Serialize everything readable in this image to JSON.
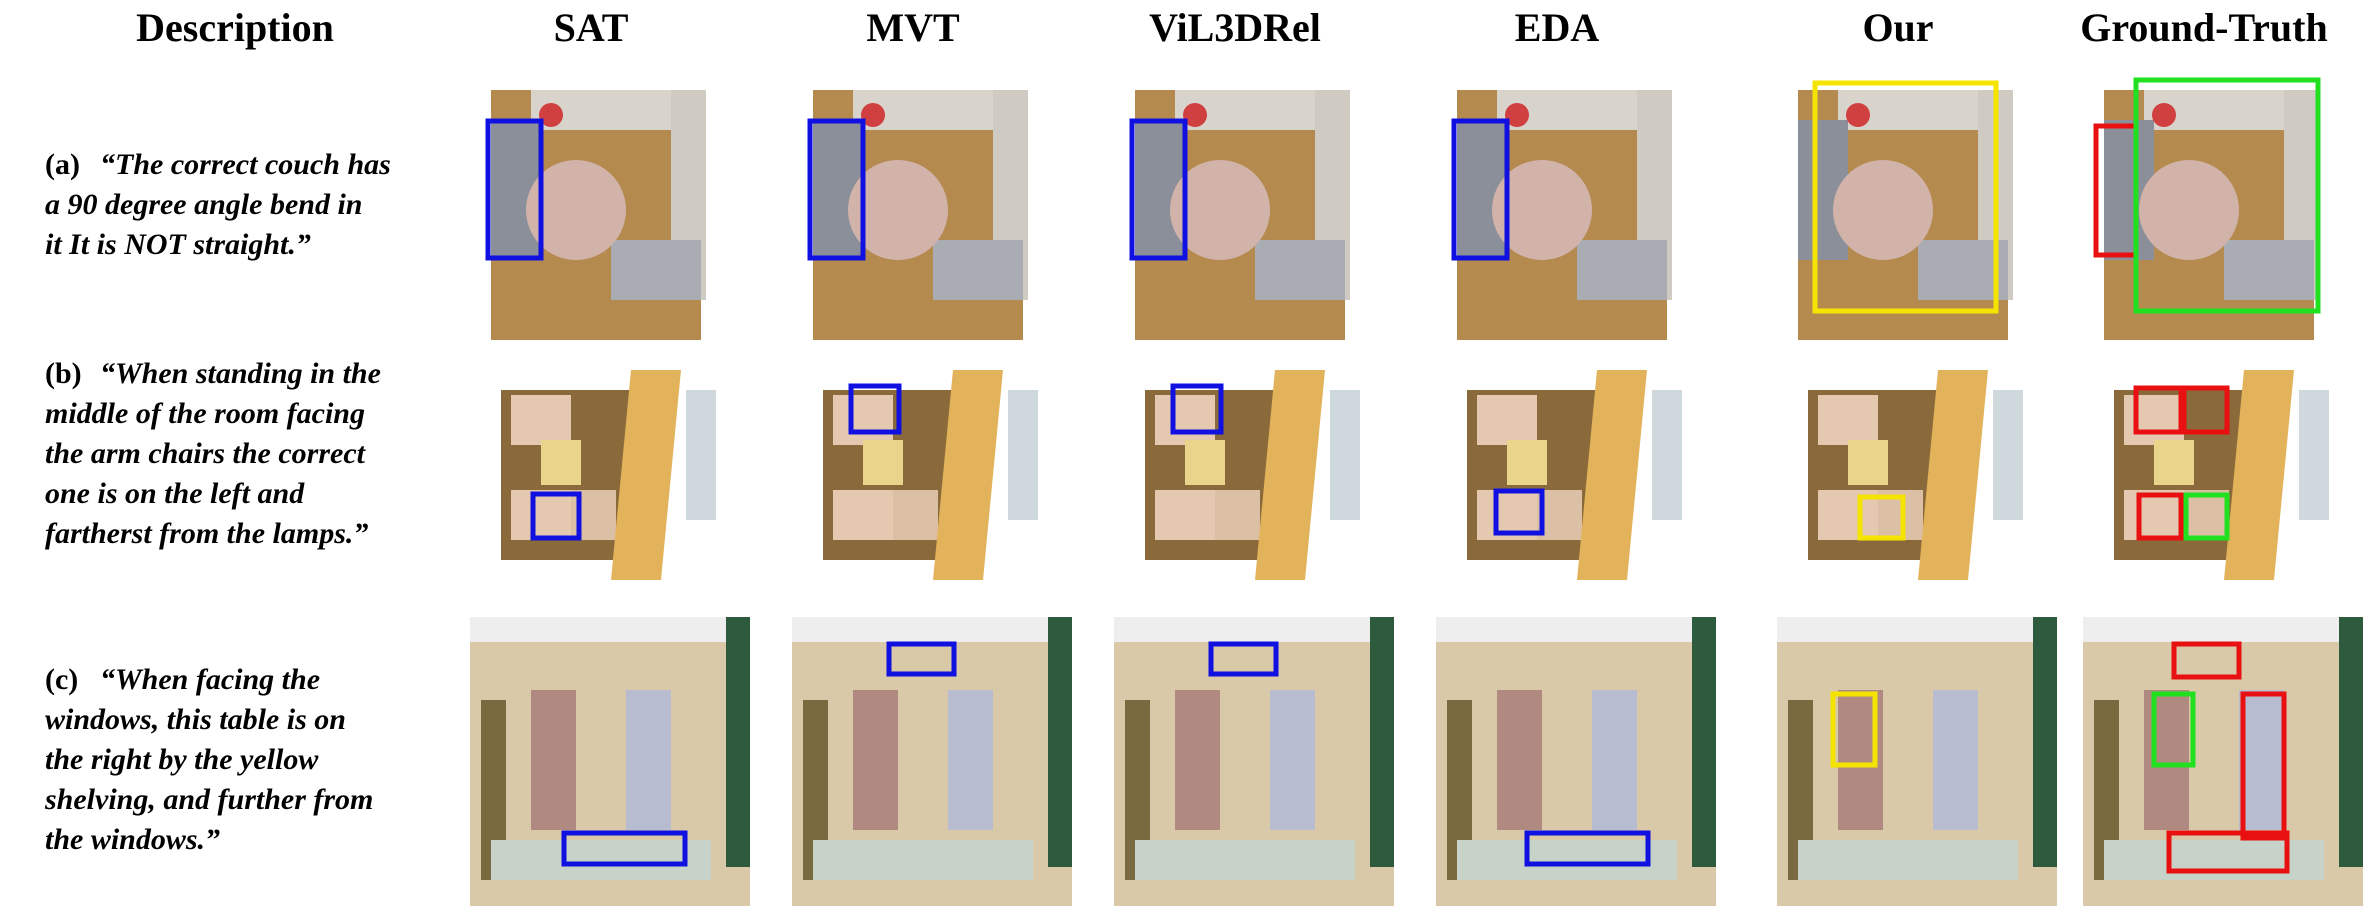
{
  "header": {
    "columns": [
      "Description",
      "SAT",
      "MVT",
      "ViL3DRel",
      "EDA",
      "Our",
      "Ground-Truth"
    ]
  },
  "rows": [
    {
      "label": "(a)",
      "lines": [
        "“The correct couch has",
        "a 90 degree angle bend in",
        "it It is NOT straight.”"
      ]
    },
    {
      "label": "(b)",
      "lines": [
        "“When standing in the",
        "middle of the room facing",
        "the arm chairs the correct",
        "one is on the left and",
        "fartherst from the lamps.”"
      ]
    },
    {
      "label": "(c)",
      "lines": [
        "“When facing the",
        "windows, this table is on",
        "the right by the yellow",
        "shelving, and further from",
        "the windows.”"
      ]
    }
  ]
}
